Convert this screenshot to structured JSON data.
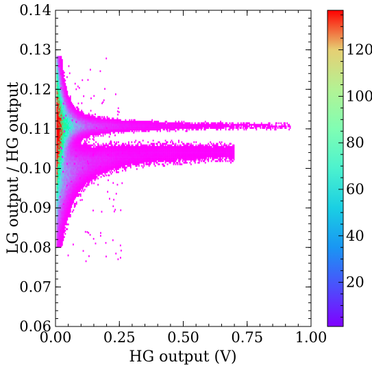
{
  "chart_data": {
    "type": "heatmap",
    "title": "",
    "xlabel": "HG output (V)",
    "ylabel": "LG output / HG output",
    "xlim": [
      0.0,
      1.0
    ],
    "ylim": [
      0.06,
      0.14
    ],
    "x_ticks": [
      0.0,
      0.25,
      0.5,
      0.75,
      1.0
    ],
    "x_tick_labels": [
      "0.00",
      "0.25",
      "0.50",
      "0.75",
      "1.00"
    ],
    "y_ticks": [
      0.06,
      0.07,
      0.08,
      0.09,
      0.1,
      0.11,
      0.12,
      0.13,
      0.14
    ],
    "y_tick_labels": [
      "0.06",
      "0.07",
      "0.08",
      "0.09",
      "0.10",
      "0.11",
      "0.12",
      "0.13",
      "0.14"
    ],
    "colormap": "rainbow",
    "colorbar": {
      "range": [
        1,
        137
      ],
      "ticks": [
        20,
        40,
        60,
        80,
        100,
        120
      ],
      "tick_labels": [
        "20",
        "40",
        "60",
        "80",
        "100",
        "120"
      ]
    },
    "grid": false,
    "bands": [
      {
        "name_hint": "upper",
        "center_y_at_x0": 0.1105,
        "center_y_far": 0.1105,
        "x_max": 0.92,
        "peak_count": 137
      },
      {
        "name_hint": "lower",
        "center_y_at_x0": 0.097,
        "center_y_far": 0.104,
        "x_max": 0.7,
        "peak_count": 40
      }
    ]
  }
}
